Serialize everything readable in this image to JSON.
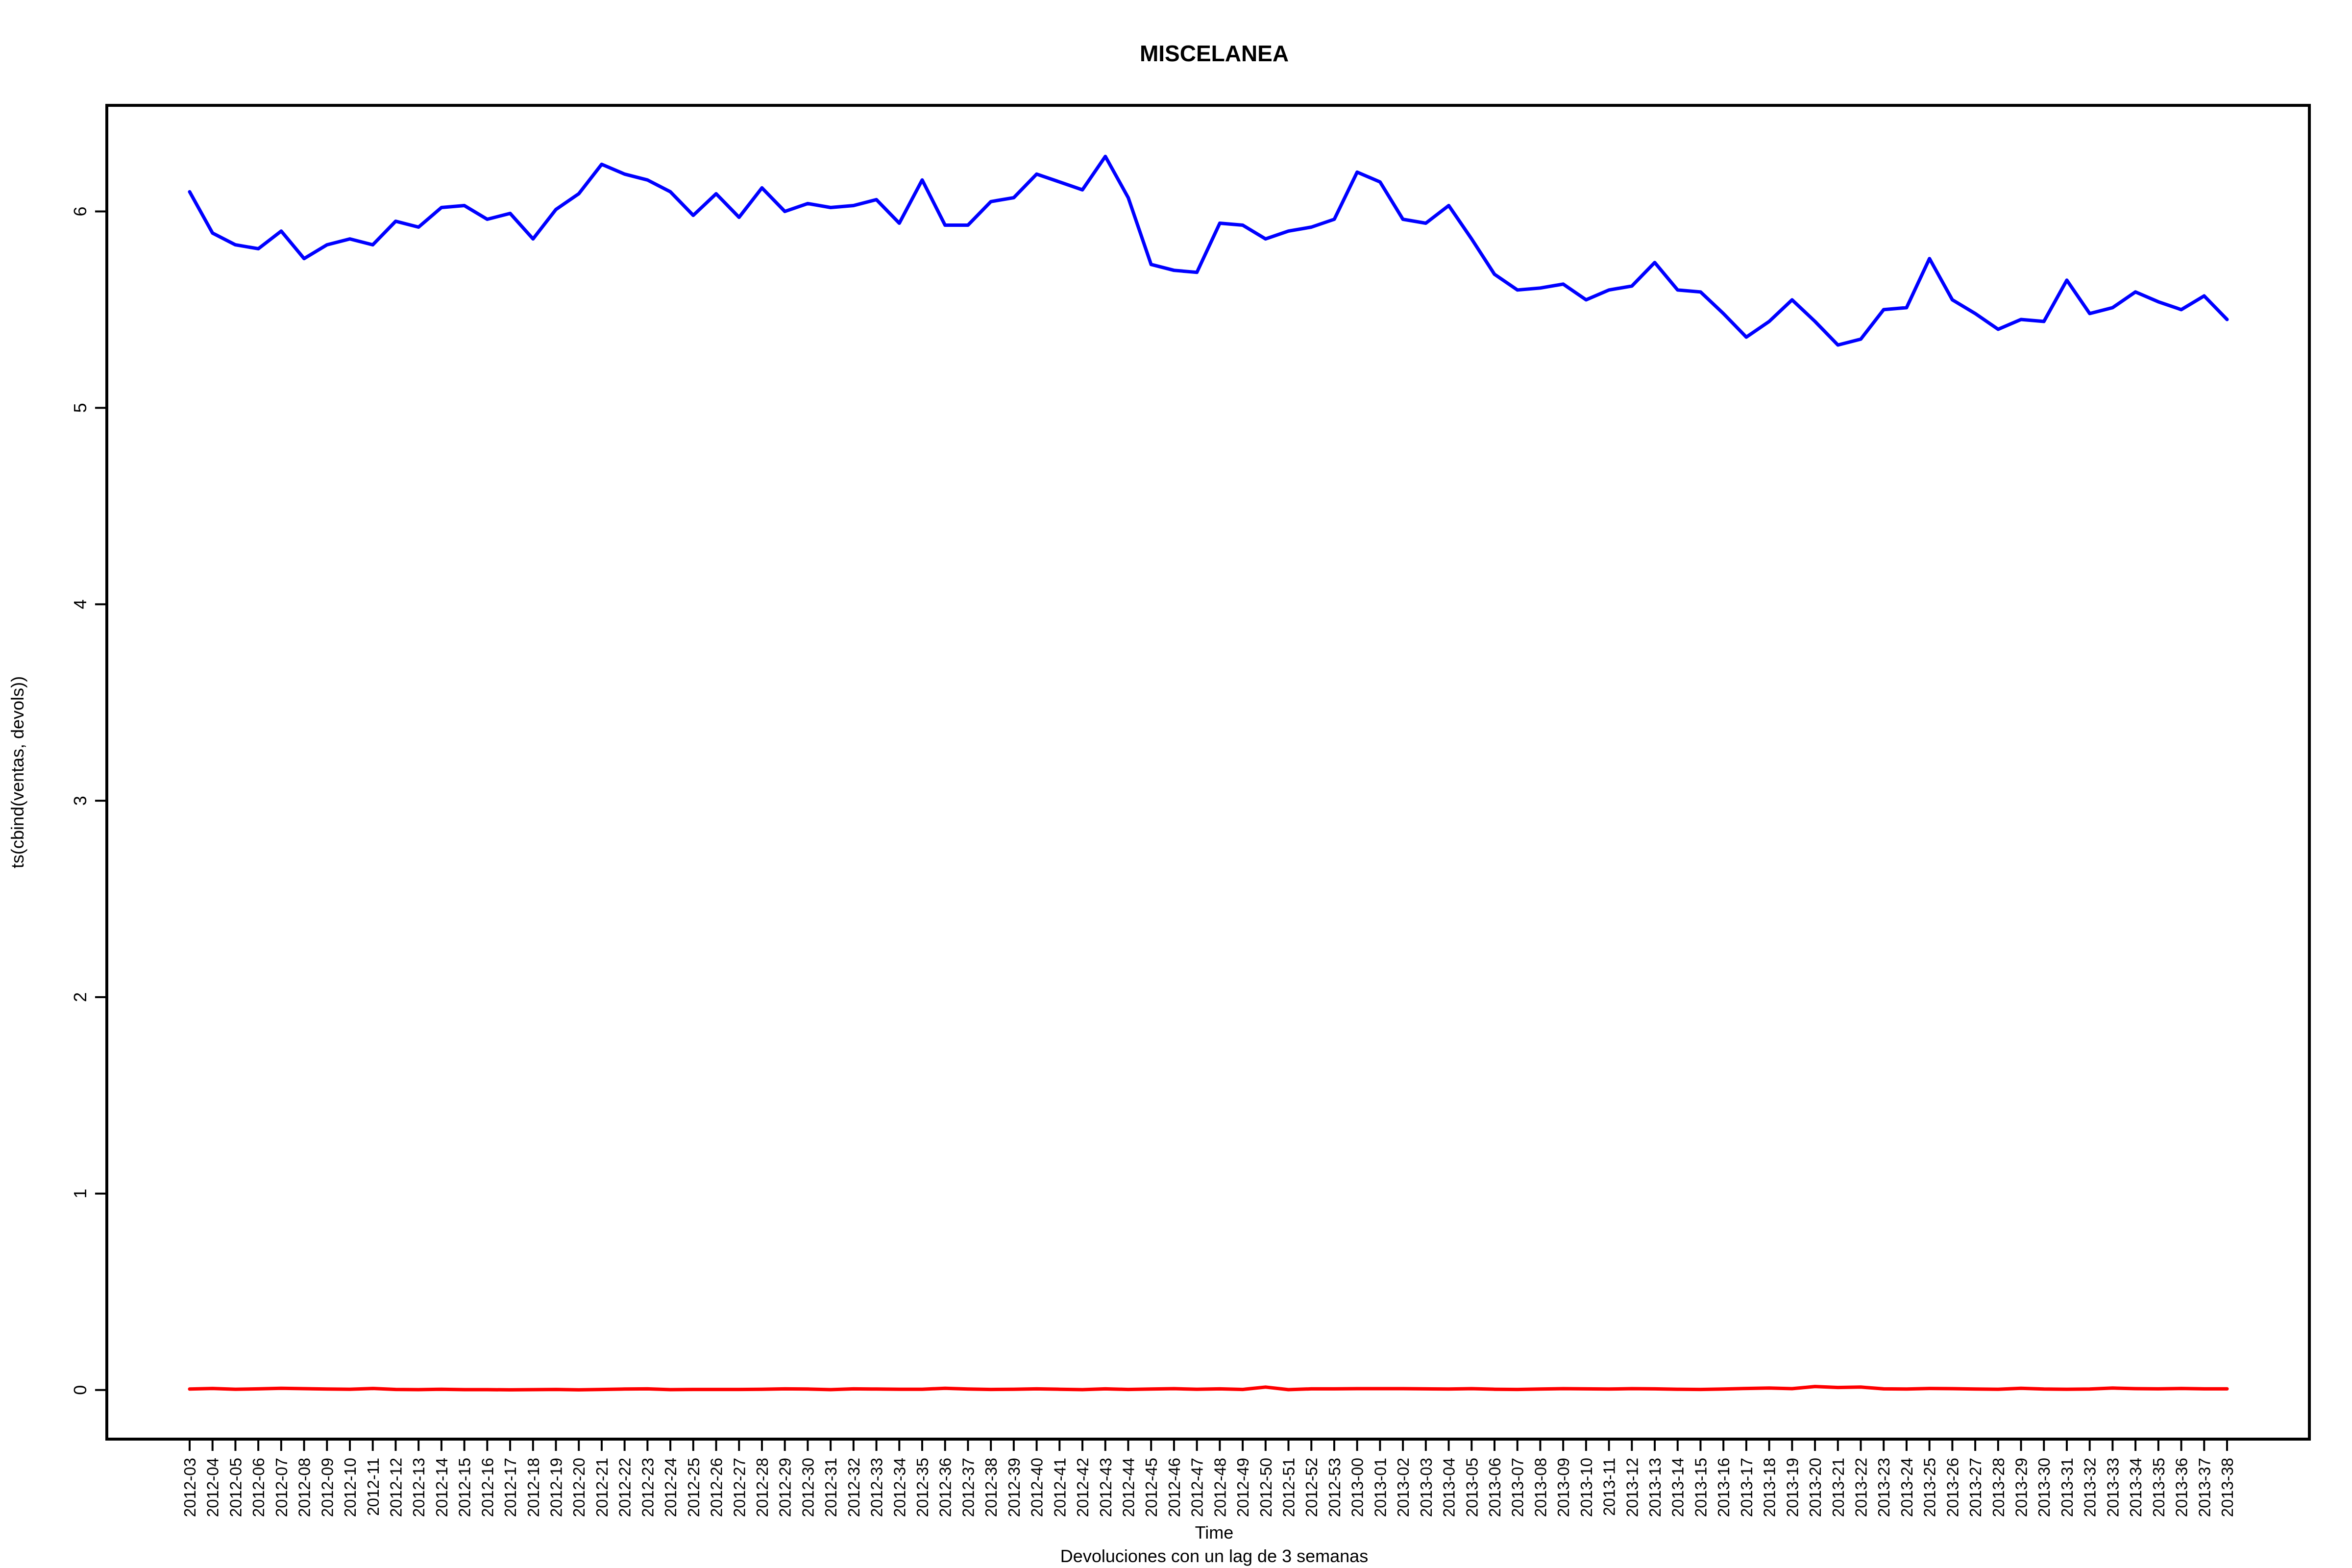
{
  "chart_data": {
    "type": "line",
    "title": "MISCELANEA",
    "xlabel": "Time",
    "ylabel": "ts(cbind(ventas, devols))",
    "subtitle": "Devoluciones con un lag de 3 semanas",
    "ylim": [
      -0.25,
      6.54
    ],
    "yticks": [
      0,
      1,
      2,
      3,
      4,
      5,
      6
    ],
    "grid": false,
    "categories": [
      "2012-03",
      "2012-04",
      "2012-05",
      "2012-06",
      "2012-07",
      "2012-08",
      "2012-09",
      "2012-10",
      "2012-11",
      "2012-12",
      "2012-13",
      "2012-14",
      "2012-15",
      "2012-16",
      "2012-17",
      "2012-18",
      "2012-19",
      "2012-20",
      "2012-21",
      "2012-22",
      "2012-23",
      "2012-24",
      "2012-25",
      "2012-26",
      "2012-27",
      "2012-28",
      "2012-29",
      "2012-30",
      "2012-31",
      "2012-32",
      "2012-33",
      "2012-34",
      "2012-35",
      "2012-36",
      "2012-37",
      "2012-38",
      "2012-39",
      "2012-40",
      "2012-41",
      "2012-42",
      "2012-43",
      "2012-44",
      "2012-45",
      "2012-46",
      "2012-47",
      "2012-48",
      "2012-49",
      "2012-50",
      "2012-51",
      "2012-52",
      "2012-53",
      "2013-00",
      "2013-01",
      "2013-02",
      "2013-03",
      "2013-04",
      "2013-05",
      "2013-06",
      "2013-07",
      "2013-08",
      "2013-09",
      "2013-10",
      "2013-11",
      "2013-12",
      "2013-13",
      "2013-14",
      "2013-15",
      "2013-16",
      "2013-17",
      "2013-18",
      "2013-19",
      "2013-20",
      "2013-21",
      "2013-22",
      "2013-23",
      "2013-24",
      "2013-25",
      "2013-26",
      "2013-27",
      "2013-28",
      "2013-29",
      "2013-30",
      "2013-31",
      "2013-32",
      "2013-33",
      "2013-34",
      "2013-35",
      "2013-36",
      "2013-37",
      "2013-38"
    ],
    "series": [
      {
        "color": "#0000ff",
        "values": [
          6.1,
          5.89,
          5.83,
          5.81,
          5.9,
          5.76,
          5.83,
          5.86,
          5.83,
          5.95,
          5.92,
          6.02,
          6.03,
          5.96,
          5.99,
          5.86,
          6.01,
          6.09,
          6.24,
          6.19,
          6.16,
          6.1,
          5.98,
          6.09,
          5.97,
          6.12,
          6.0,
          6.04,
          6.02,
          6.03,
          6.06,
          5.94,
          6.16,
          5.93,
          5.93,
          6.05,
          6.07,
          6.19,
          6.15,
          6.11,
          6.28,
          6.07,
          5.73,
          5.7,
          5.69,
          5.94,
          5.93,
          5.86,
          5.9,
          5.92,
          5.96,
          6.2,
          6.15,
          5.96,
          5.94,
          6.03,
          5.86,
          5.68,
          5.6,
          5.61,
          5.63,
          5.55,
          5.6,
          5.62,
          5.74,
          5.6,
          5.59,
          5.48,
          5.36,
          5.44,
          5.55,
          5.44,
          5.32,
          5.35,
          5.5,
          5.51,
          5.76,
          5.55,
          5.48,
          5.4,
          5.45,
          5.44,
          5.65,
          5.48,
          5.51,
          5.59,
          5.54,
          5.5,
          5.57,
          5.45
        ]
      },
      {
        "color": "#ff0000",
        "values": [
          0.005,
          0.008,
          0.004,
          0.006,
          0.009,
          0.007,
          0.005,
          0.004,
          0.008,
          0.003,
          0.002,
          0.004,
          0.002,
          0.002,
          0.001,
          0.002,
          0.003,
          0.001,
          0.003,
          0.005,
          0.006,
          0.002,
          0.003,
          0.003,
          0.003,
          0.004,
          0.006,
          0.005,
          0.002,
          0.006,
          0.005,
          0.004,
          0.004,
          0.009,
          0.005,
          0.003,
          0.004,
          0.006,
          0.004,
          0.002,
          0.006,
          0.003,
          0.005,
          0.007,
          0.004,
          0.006,
          0.003,
          0.015,
          0.002,
          0.006,
          0.006,
          0.007,
          0.007,
          0.007,
          0.006,
          0.005,
          0.007,
          0.004,
          0.003,
          0.005,
          0.007,
          0.006,
          0.005,
          0.007,
          0.006,
          0.004,
          0.003,
          0.005,
          0.008,
          0.01,
          0.007,
          0.018,
          0.013,
          0.015,
          0.006,
          0.005,
          0.008,
          0.007,
          0.005,
          0.004,
          0.009,
          0.005,
          0.004,
          0.005,
          0.01,
          0.007,
          0.006,
          0.008,
          0.006,
          0.006
        ]
      }
    ]
  }
}
